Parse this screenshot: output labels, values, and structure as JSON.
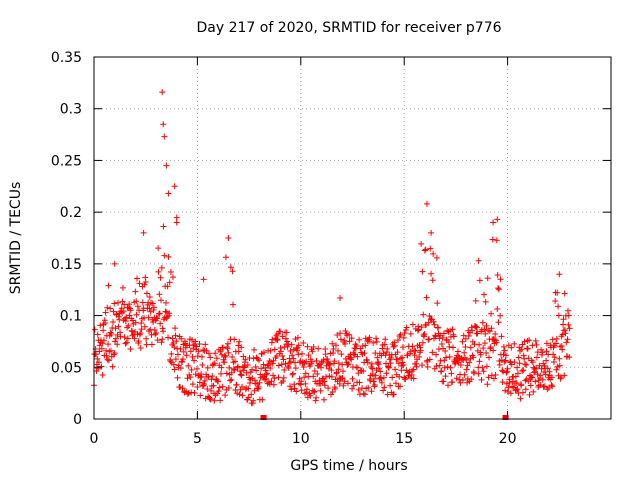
{
  "chart_data": {
    "type": "scatter",
    "title": "Day 217 of 2020, SRMTID for receiver p776",
    "xlabel": "GPS time / hours",
    "ylabel": "SRMTID / TECUs",
    "xlim": [
      0,
      25
    ],
    "ylim": [
      0,
      0.35
    ],
    "xticks": [
      0,
      5,
      10,
      15,
      20
    ],
    "yticks": [
      0,
      0.05,
      0.1,
      0.15,
      0.2,
      0.25,
      0.3,
      0.35
    ],
    "xtick_labels": [
      "0",
      "5",
      "10",
      "15",
      "20"
    ],
    "ytick_labels": [
      "0",
      "0.05",
      "0.1",
      "0.15",
      "0.2",
      "0.25",
      "0.3",
      "0.35"
    ],
    "grid": true,
    "marker": "+",
    "color": "#ff0000",
    "gap_markers_x": [
      8.2,
      19.9
    ],
    "envelope": {
      "x": [
        0,
        0.5,
        1,
        1.5,
        2,
        2.5,
        3,
        3.3,
        3.6,
        4,
        4.5,
        5,
        5.5,
        6,
        6.5,
        7,
        7.5,
        8,
        8.5,
        9,
        9.5,
        10,
        10.5,
        11,
        11.5,
        12,
        12.5,
        13,
        13.5,
        14,
        14.5,
        15,
        15.5,
        16,
        16.5,
        17,
        17.5,
        18,
        18.5,
        19,
        19.5,
        20,
        20.5,
        21,
        21.5,
        22,
        22.5,
        23
      ],
      "y": [
        0.06,
        0.07,
        0.08,
        0.1,
        0.09,
        0.1,
        0.09,
        0.1,
        0.09,
        0.06,
        0.05,
        0.05,
        0.045,
        0.04,
        0.055,
        0.05,
        0.04,
        0.04,
        0.05,
        0.06,
        0.055,
        0.05,
        0.045,
        0.04,
        0.05,
        0.06,
        0.055,
        0.05,
        0.055,
        0.05,
        0.05,
        0.06,
        0.065,
        0.08,
        0.07,
        0.06,
        0.06,
        0.06,
        0.07,
        0.06,
        0.06,
        0.05,
        0.045,
        0.05,
        0.05,
        0.055,
        0.06,
        0.08
      ]
    },
    "spikes": [
      {
        "x": 1.0,
        "y": 0.15
      },
      {
        "x": 2.4,
        "y": 0.18
      },
      {
        "x": 3.3,
        "y": 0.316
      },
      {
        "x": 3.35,
        "y": 0.285
      },
      {
        "x": 3.4,
        "y": 0.273
      },
      {
        "x": 3.5,
        "y": 0.245
      },
      {
        "x": 3.6,
        "y": 0.218
      },
      {
        "x": 3.9,
        "y": 0.225
      },
      {
        "x": 4.0,
        "y": 0.19
      },
      {
        "x": 5.3,
        "y": 0.135
      },
      {
        "x": 6.5,
        "y": 0.175
      },
      {
        "x": 11.9,
        "y": 0.117
      },
      {
        "x": 16.1,
        "y": 0.208
      },
      {
        "x": 16.3,
        "y": 0.18
      },
      {
        "x": 18.6,
        "y": 0.153
      },
      {
        "x": 19.3,
        "y": 0.19
      },
      {
        "x": 19.5,
        "y": 0.193
      },
      {
        "x": 22.5,
        "y": 0.14
      }
    ],
    "bursts": [
      {
        "x": 1.0,
        "w": 0.9,
        "top": 0.13
      },
      {
        "x": 2.4,
        "w": 0.9,
        "top": 0.14
      },
      {
        "x": 3.55,
        "w": 1.0,
        "top": 0.2
      },
      {
        "x": 6.5,
        "w": 0.5,
        "top": 0.16
      },
      {
        "x": 16.2,
        "w": 0.9,
        "top": 0.17
      },
      {
        "x": 18.8,
        "w": 0.7,
        "top": 0.14
      },
      {
        "x": 19.4,
        "w": 0.7,
        "top": 0.18
      },
      {
        "x": 22.6,
        "w": 0.7,
        "top": 0.13
      }
    ],
    "sample_step_hours": 0.02
  }
}
